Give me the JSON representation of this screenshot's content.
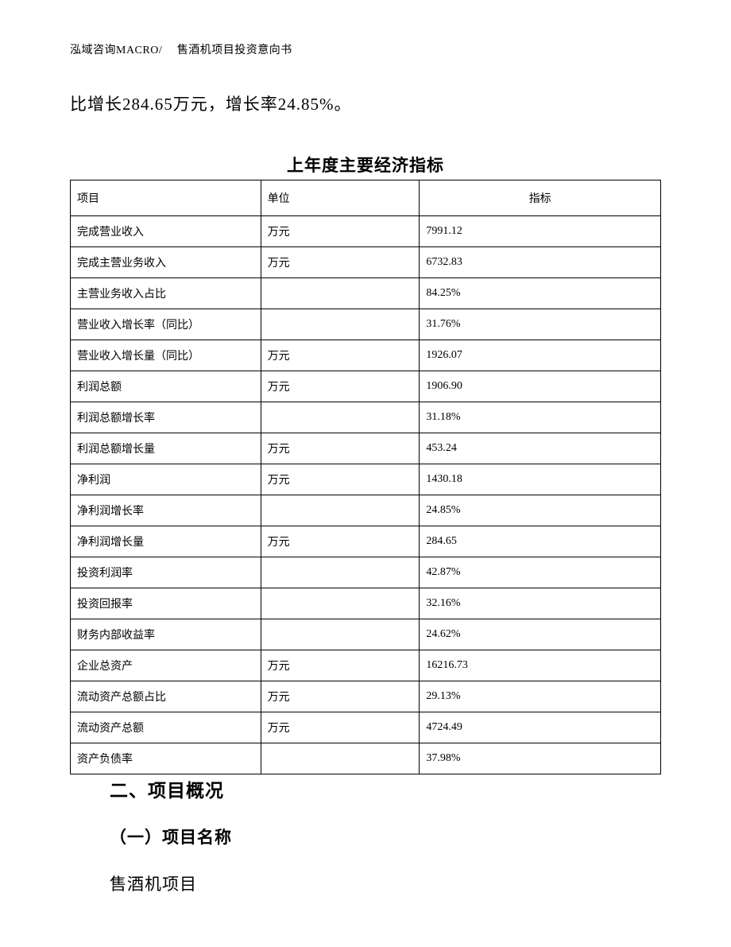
{
  "header": "泓域咨询MACRO/　 售酒机项目投资意向书",
  "body_text": "比增长284.65万元，增长率24.85%。",
  "table": {
    "title": "上年度主要经济指标",
    "columns": [
      "项目",
      "单位",
      "指标"
    ],
    "rows": [
      [
        "完成营业收入",
        "万元",
        "7991.12"
      ],
      [
        "完成主营业务收入",
        "万元",
        "6732.83"
      ],
      [
        "主营业务收入占比",
        "",
        "84.25%"
      ],
      [
        "营业收入增长率（同比）",
        "",
        "31.76%"
      ],
      [
        "营业收入增长量（同比）",
        "万元",
        "1926.07"
      ],
      [
        "利润总额",
        "万元",
        "1906.90"
      ],
      [
        "利润总额增长率",
        "",
        "31.18%"
      ],
      [
        "利润总额增长量",
        "万元",
        "453.24"
      ],
      [
        "净利润",
        "万元",
        "1430.18"
      ],
      [
        "净利润增长率",
        "",
        "24.85%"
      ],
      [
        "净利润增长量",
        "万元",
        "284.65"
      ],
      [
        "投资利润率",
        "",
        "42.87%"
      ],
      [
        "投资回报率",
        "",
        "32.16%"
      ],
      [
        "财务内部收益率",
        "",
        "24.62%"
      ],
      [
        "企业总资产",
        "万元",
        "16216.73"
      ],
      [
        "流动资产总额占比",
        "万元",
        "29.13%"
      ],
      [
        "流动资产总额",
        "万元",
        "4724.49"
      ],
      [
        "资产负债率",
        "",
        "37.98%"
      ]
    ]
  },
  "section": {
    "heading": "二、项目概况",
    "sub": "（一）项目名称",
    "body": "售酒机项目"
  }
}
